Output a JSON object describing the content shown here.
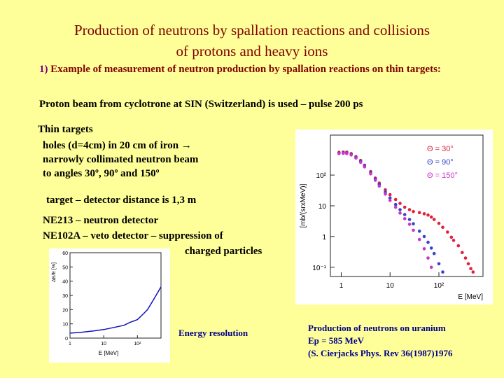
{
  "title": {
    "line1": "Production of neutrons by spallation reactions and collisions",
    "line2": "of protons and heavy ions"
  },
  "intro": {
    "number": "1)",
    "text": "Example of measurement of neutron production by spallation reactions on thin targets:"
  },
  "proton_beam": "Proton beam from cyclotrone at SIN (Switzerland) is used – pulse 200 ps",
  "thin_targets": {
    "heading": "Thin targets",
    "lines": [
      "holes (d=4cm) in 20 cm of iron →",
      "narrowly collimated neutron beam",
      "to angles 30º, 90º and 150º"
    ]
  },
  "distance": "target – detector distance is 1,3 m",
  "detectors": {
    "line1": "NE213 – neutron detector",
    "line2": "NE102A – veto detector – suppression of",
    "line3": "charged particles"
  },
  "captions": {
    "energy_resolution": "Energy resolution",
    "production": [
      "Production of neutrons on uranium",
      "Ep = 585 MeV",
      "(S. Cierjacks Phys. Rev 36(1987)1976"
    ]
  },
  "chart_data": [
    {
      "type": "scatter",
      "xscale": "log",
      "yscale": "log",
      "xlabel": "E [MeV]",
      "ylabel": "[mb/(srxMeV)]",
      "xlim": [
        0.6,
        800
      ],
      "ylim": [
        0.05,
        2000
      ],
      "xticks": [
        "1",
        "10",
        "10²"
      ],
      "yticks": [
        "10⁻¹",
        "1",
        "10",
        "10²"
      ],
      "legend_position": "top-right",
      "series": [
        {
          "name": "Θ = 30°",
          "color": "#e0203a",
          "x": [
            0.9,
            1.1,
            1.3,
            1.6,
            2,
            2.5,
            3,
            4,
            5,
            6,
            8,
            10,
            13,
            16,
            20,
            25,
            30,
            40,
            50,
            60,
            70,
            80,
            100,
            120,
            150,
            180,
            200,
            250,
            300,
            350,
            400,
            450,
            500
          ],
          "y": [
            550,
            560,
            560,
            500,
            400,
            300,
            210,
            130,
            80,
            55,
            33,
            23,
            16,
            12,
            9,
            7.5,
            6.5,
            6,
            5.5,
            5,
            4.3,
            3.6,
            2.7,
            2,
            1.4,
            0.95,
            0.75,
            0.5,
            0.3,
            0.2,
            0.13,
            0.09,
            0.07
          ]
        },
        {
          "name": "Θ = 90°",
          "color": "#3545c8",
          "x": [
            0.9,
            1.1,
            1.3,
            1.6,
            2,
            2.5,
            3,
            4,
            5,
            6,
            8,
            10,
            13,
            16,
            20,
            25,
            30,
            40,
            50,
            60,
            70,
            80,
            100,
            120
          ],
          "y": [
            520,
            530,
            520,
            470,
            380,
            280,
            200,
            120,
            75,
            50,
            28,
            18,
            11,
            7.5,
            5.2,
            3.6,
            2.6,
            1.5,
            1,
            0.65,
            0.42,
            0.28,
            0.13,
            0.07
          ]
        },
        {
          "name": "Θ = 150°",
          "color": "#cc33cc",
          "x": [
            0.9,
            1.1,
            1.3,
            1.6,
            2,
            2.5,
            3,
            4,
            5,
            6,
            8,
            10,
            13,
            16,
            20,
            25,
            30,
            40,
            50,
            60,
            70
          ],
          "y": [
            500,
            510,
            500,
            450,
            360,
            260,
            185,
            110,
            68,
            44,
            24,
            15,
            9,
            5.8,
            3.8,
            2.5,
            1.6,
            0.8,
            0.4,
            0.2,
            0.1
          ]
        }
      ]
    },
    {
      "type": "line",
      "xscale": "log",
      "xlabel": "E [MeV]",
      "ylabel": "ΔE/E [%]",
      "xlim": [
        1,
        500
      ],
      "ylim": [
        0,
        60
      ],
      "xticks": [
        "1",
        "10",
        "10²"
      ],
      "yticks": [
        "0",
        "10",
        "20",
        "30",
        "40",
        "50",
        "60"
      ],
      "series": [
        {
          "x": [
            1,
            2,
            5,
            10,
            20,
            40,
            60,
            100,
            150,
            200,
            300,
            400,
            500
          ],
          "y": [
            3.5,
            4,
            5,
            6,
            7.5,
            9,
            11,
            13,
            17,
            20,
            27,
            32,
            36
          ]
        }
      ]
    }
  ]
}
